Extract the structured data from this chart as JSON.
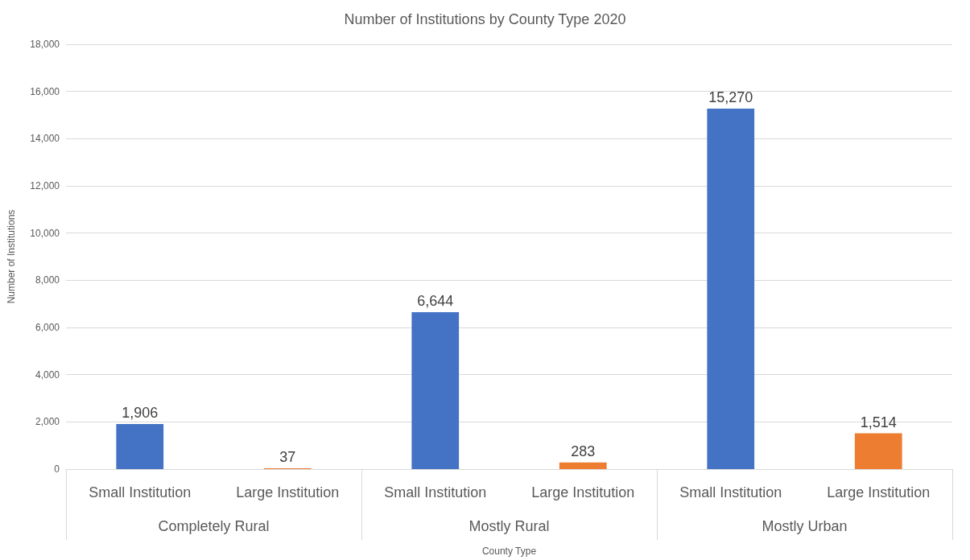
{
  "chart_data": {
    "type": "bar",
    "title": "Number of Institutions by County Type 2020",
    "xlabel": "County Type",
    "ylabel": "Number of Institutions",
    "categories": [
      "Completely Rural",
      "Mostly Rural",
      "Mostly Urban"
    ],
    "series": [
      {
        "name": "Small Institution",
        "color": "#4472c4",
        "values": [
          1906,
          6644,
          15270
        ],
        "value_labels": [
          "1,906",
          "6,644",
          "15,270"
        ]
      },
      {
        "name": "Large Institution",
        "color": "#ed7d31",
        "values": [
          37,
          283,
          1514
        ],
        "value_labels": [
          "37",
          "283",
          "1,514"
        ]
      }
    ],
    "ylim": [
      0,
      18000
    ],
    "yticks": [
      0,
      {
        "value": 2000,
        "label": "2,000"
      },
      {
        "value": 4000,
        "label": "4,000"
      },
      {
        "value": 6000,
        "label": "6,000"
      },
      {
        "value": 8000,
        "label": "8,000"
      },
      {
        "value": 10000,
        "label": "10,000"
      },
      {
        "value": 12000,
        "label": "12,000"
      },
      {
        "value": 14000,
        "label": "14,000"
      },
      {
        "value": 16000,
        "label": "16,000"
      },
      {
        "value": 18000,
        "label": "18,000"
      }
    ],
    "grid": "y",
    "legend": false
  }
}
